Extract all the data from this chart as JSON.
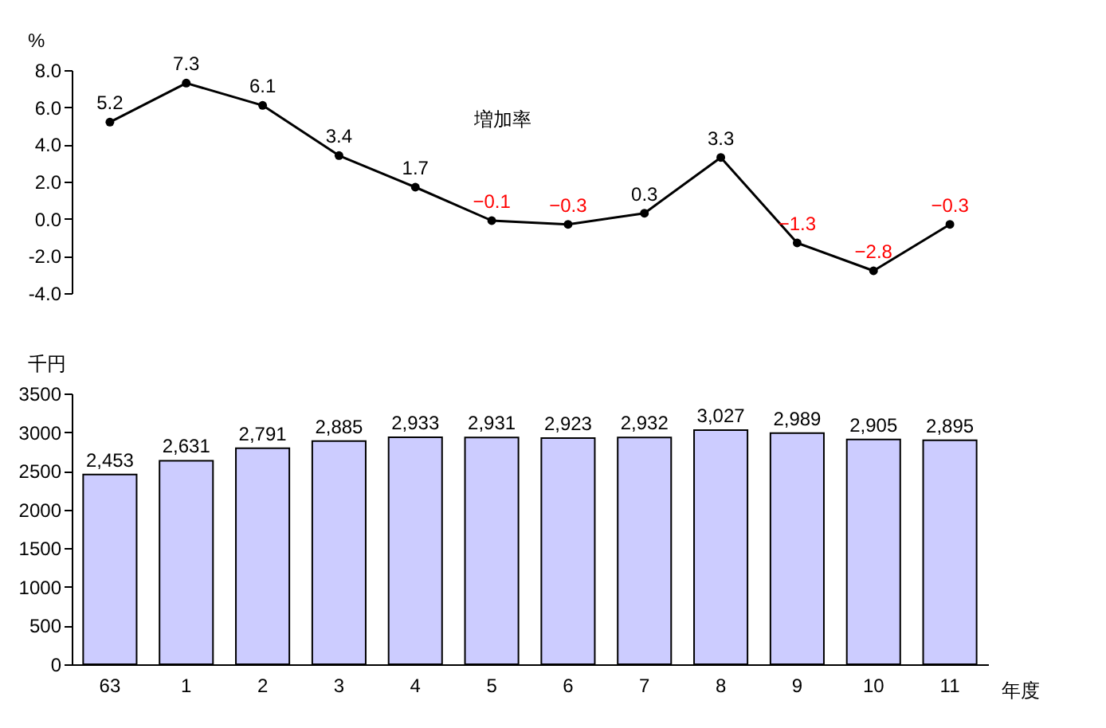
{
  "chart_data": [
    {
      "type": "line",
      "ylabel": "%",
      "categories": [
        "63",
        "1",
        "2",
        "3",
        "4",
        "5",
        "6",
        "7",
        "8",
        "9",
        "10",
        "11"
      ],
      "series": [
        {
          "name": "増加率",
          "color": "#000000",
          "values": [
            5.2,
            7.3,
            6.1,
            3.4,
            1.7,
            -0.1,
            -0.3,
            0.3,
            3.3,
            -1.3,
            -2.8,
            -0.3
          ]
        }
      ],
      "ylim": [
        -4,
        8
      ],
      "yticks": [
        {
          "value": -4,
          "label": "-4.0"
        },
        {
          "value": -2,
          "label": "-2.0"
        },
        {
          "value": 0,
          "label": "0.0"
        },
        {
          "value": 2,
          "label": "2.0"
        },
        {
          "value": 4,
          "label": "4.0"
        },
        {
          "value": 6,
          "label": "6.0"
        },
        {
          "value": 8,
          "label": "8.0"
        }
      ],
      "data_labels": true,
      "marker": "circle",
      "tick_labels": "y",
      "grid": false,
      "legend": false
    },
    {
      "type": "bar",
      "ylabel": "千円",
      "xlabel": "年度",
      "categories": [
        "63",
        "1",
        "2",
        "3",
        "4",
        "5",
        "6",
        "7",
        "8",
        "9",
        "10",
        "11"
      ],
      "values": [
        2453,
        2631,
        2791,
        2885,
        2933,
        2931,
        2923,
        2932,
        3027,
        2989,
        2905,
        2895
      ],
      "color": "#ccccff",
      "value_labels": [
        "2,453",
        "2,631",
        "2,791",
        "2,885",
        "2,933",
        "2,931",
        "2,923",
        "2,932",
        "3,027",
        "2,989",
        "2,905",
        "2,895"
      ],
      "ylim": [
        0,
        3500
      ],
      "yticks": [
        0,
        500,
        1000,
        1500,
        2000,
        2500,
        3000,
        3500
      ],
      "grid": false,
      "legend": false
    }
  ]
}
